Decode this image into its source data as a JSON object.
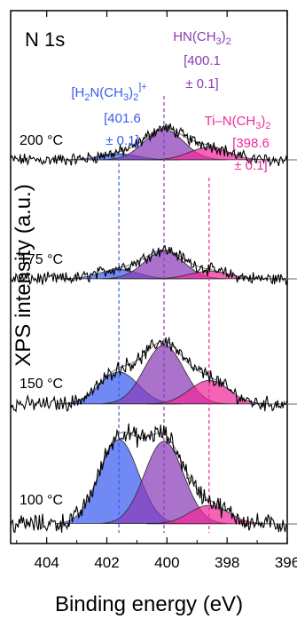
{
  "chart_data": {
    "type": "line",
    "panel_title": "N 1s",
    "xlabel": "Binding energy (eV)",
    "ylabel": "XPS intensity (a.u.)",
    "x_reversed": true,
    "xlim": [
      396,
      405.2
    ],
    "x_ticks": [
      {
        "value": 404,
        "label": "404"
      },
      {
        "value": 402,
        "label": "402"
      },
      {
        "value": 400,
        "label": "400"
      },
      {
        "value": 398,
        "label": "398"
      },
      {
        "value": 396,
        "label": "396"
      }
    ],
    "grid": false,
    "colors": {
      "H2N": "#3a5bf0",
      "HN": "#8a3bb8",
      "Ti": "#f0289a",
      "data": "#000000"
    },
    "peak_width_sigma_ev": 0.65,
    "reference_lines": [
      {
        "component": "H2N",
        "name_main": "[H",
        "name_sub1": "2",
        "name_mid": "N(CH",
        "name_sub2": "3",
        "name_end": ")",
        "name_sub3": "2",
        "name_sup": "]+",
        "value_line1": "[401.6",
        "value_line2": "± 0.1]",
        "position": 401.6,
        "color": "#3a5bf0"
      },
      {
        "component": "HN",
        "name_main": "HN(CH",
        "name_sub1": "3",
        "name_end": ")",
        "name_sub2": "2",
        "value_line1": "[400.1",
        "value_line2": "± 0.1]",
        "position": 400.1,
        "color": "#8a3bb8"
      },
      {
        "component": "Ti",
        "name_main": "Ti–N(CH",
        "name_sub1": "3",
        "name_end": ")",
        "name_sub2": "2",
        "value_line1": "[398.6",
        "value_line2": "± 0.1]",
        "position": 398.6,
        "color": "#f0289a"
      }
    ],
    "series": [
      {
        "temperature": "200 °C",
        "peaks": {
          "H2N": 0.07,
          "HN": 0.36,
          "Ti": 0.15
        },
        "noise": 0.06
      },
      {
        "temperature": "175 °C",
        "peaks": {
          "H2N": 0.11,
          "HN": 0.33,
          "Ti": 0.09
        },
        "noise": 0.06
      },
      {
        "temperature": "150 °C",
        "peaks": {
          "H2N": 0.38,
          "HN": 0.7,
          "Ti": 0.28
        },
        "noise": 0.07
      },
      {
        "temperature": "100 °C",
        "peaks": {
          "H2N": 1.0,
          "HN": 0.98,
          "Ti": 0.22
        },
        "noise": 0.09
      }
    ]
  }
}
